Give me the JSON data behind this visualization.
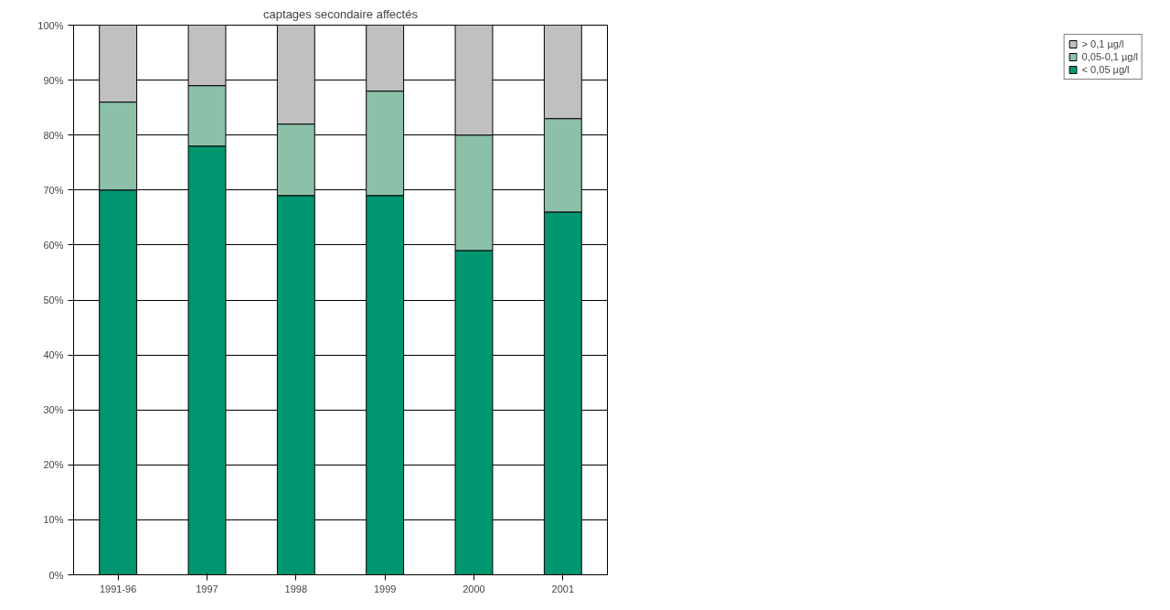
{
  "chart_data": {
    "type": "bar",
    "title": "captages secondaire affectés",
    "stacked": true,
    "categories": [
      "1991-96",
      "1997",
      "1998",
      "1999",
      "2000",
      "2001"
    ],
    "series": [
      {
        "name": "< 0,05 µg/l",
        "color": "#009670",
        "values": [
          70,
          78,
          69,
          69,
          59,
          66
        ]
      },
      {
        "name": "0,05-0,1 µg/l",
        "color": "#8cc0a8",
        "values": [
          16,
          11,
          13,
          19,
          21,
          17
        ]
      },
      {
        "name": "> 0,1 µg/l",
        "color": "#c0c0c0",
        "values": [
          14,
          11,
          18,
          12,
          20,
          17
        ]
      }
    ],
    "ylim": [
      0,
      100
    ],
    "yticks": [
      {
        "value": 0,
        "label": "0%"
      },
      {
        "value": 10,
        "label": "10%"
      },
      {
        "value": 20,
        "label": "20%"
      },
      {
        "value": 30,
        "label": "30%"
      },
      {
        "value": 40,
        "label": "40%"
      },
      {
        "value": 50,
        "label": "50%"
      },
      {
        "value": 60,
        "label": "60%"
      },
      {
        "value": 70,
        "label": "70%"
      },
      {
        "value": 80,
        "label": "80%"
      },
      {
        "value": 90,
        "label": "90%"
      },
      {
        "value": 100,
        "label": "100%"
      }
    ],
    "grid": "y",
    "legend": "right"
  }
}
